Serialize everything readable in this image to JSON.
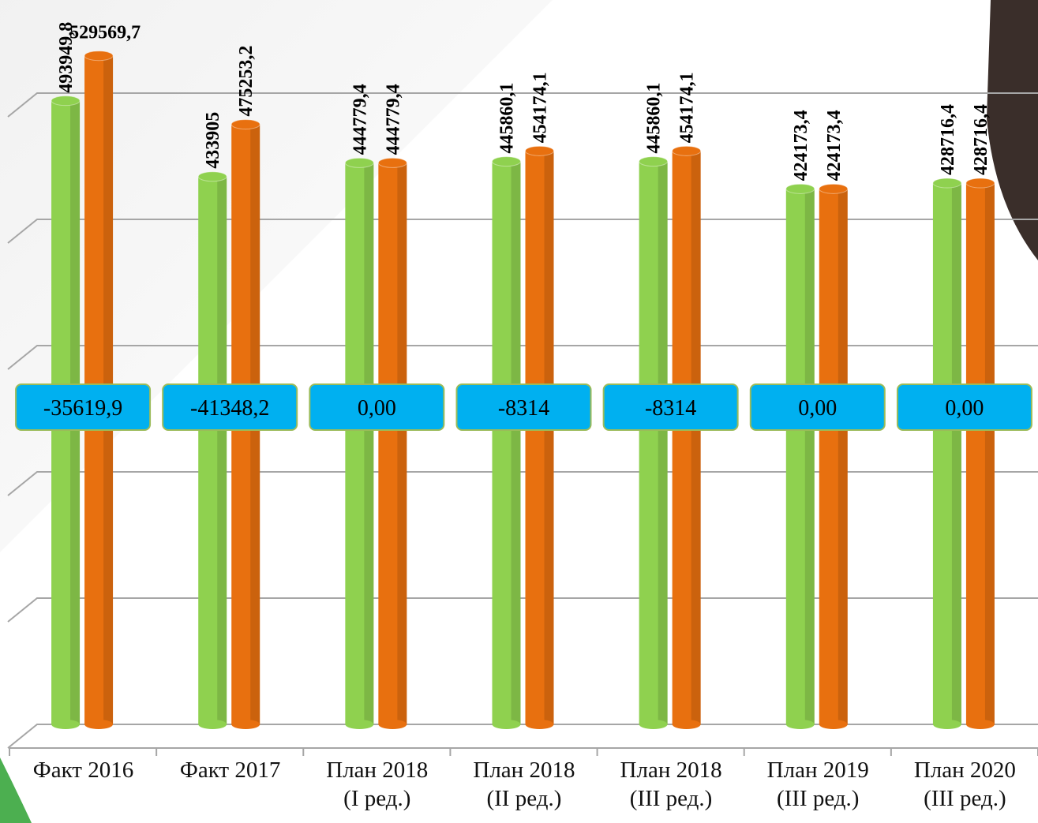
{
  "chart_data": {
    "type": "bar",
    "categories": [
      "Факт 2016",
      "Факт 2017",
      "План 2018\n(I ред.)",
      "План 2018\n(II ред.)",
      "План 2018\n(III ред.)",
      "План 2019\n(III ред.)",
      "План 2020\n(III ред.)"
    ],
    "series": [
      {
        "color": "#8fd14f",
        "values": [
          493949.8,
          433905,
          444779.4,
          445860.1,
          445860.1,
          424173.4,
          428716.4
        ],
        "value_labels": [
          "493949,8",
          "433905",
          "444779,4",
          "445860,1",
          "445860,1",
          "424173,4",
          "428716,4"
        ]
      },
      {
        "color": "#e8700f",
        "values": [
          529569.7,
          475253.2,
          444779.4,
          454174.1,
          454174.1,
          424173.4,
          428716.4
        ],
        "value_labels": [
          "529569,7",
          "475253,2",
          "444779,4",
          "454174,1",
          "454174,1",
          "424173,4",
          "428716,4"
        ]
      }
    ],
    "difference": {
      "color": "#00b0f0",
      "values": [
        -35619.9,
        -41348.2,
        0,
        -8314,
        -8314,
        0,
        0
      ],
      "value_labels": [
        "-35619,9",
        "-41348,2",
        "0,00",
        "-8314",
        "-8314",
        "0,00",
        "0,00"
      ]
    },
    "ylim": [
      0,
      600000
    ],
    "yticks": [
      0,
      100000,
      200000,
      300000,
      400000,
      500000
    ],
    "grid": true
  }
}
